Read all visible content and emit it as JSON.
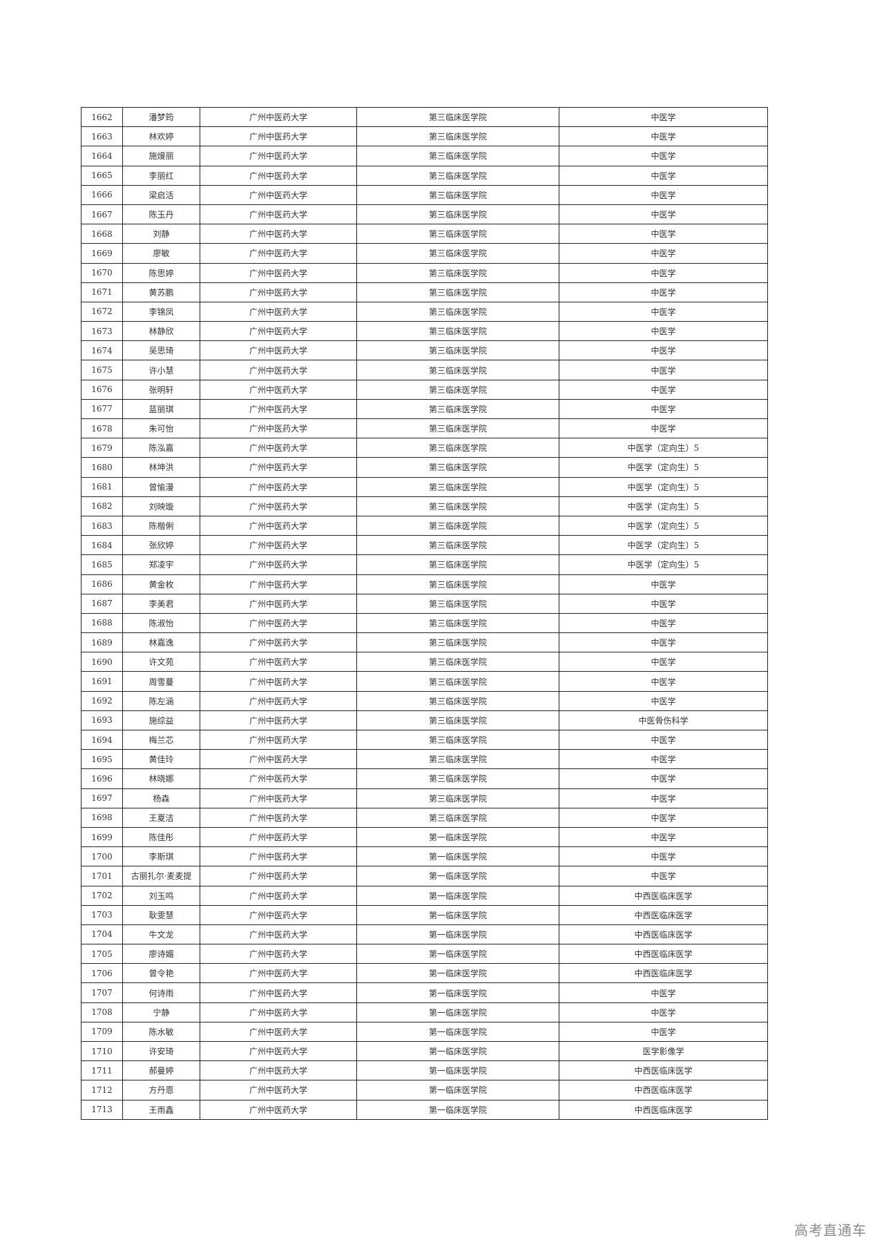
{
  "table": {
    "rows": [
      [
        "1662",
        "潘梦筠",
        "广州中医药大学",
        "第三临床医学院",
        "中医学"
      ],
      [
        "1663",
        "林欢婷",
        "广州中医药大学",
        "第三临床医学院",
        "中医学"
      ],
      [
        "1664",
        "施熳丽",
        "广州中医药大学",
        "第三临床医学院",
        "中医学"
      ],
      [
        "1665",
        "李丽红",
        "广州中医药大学",
        "第三临床医学院",
        "中医学"
      ],
      [
        "1666",
        "梁启活",
        "广州中医药大学",
        "第三临床医学院",
        "中医学"
      ],
      [
        "1667",
        "陈玉丹",
        "广州中医药大学",
        "第三临床医学院",
        "中医学"
      ],
      [
        "1668",
        "刘静",
        "广州中医药大学",
        "第三临床医学院",
        "中医学"
      ],
      [
        "1669",
        "廖敏",
        "广州中医药大学",
        "第三临床医学院",
        "中医学"
      ],
      [
        "1670",
        "陈思婷",
        "广州中医药大学",
        "第三临床医学院",
        "中医学"
      ],
      [
        "1671",
        "黄苏鹏",
        "广州中医药大学",
        "第三临床医学院",
        "中医学"
      ],
      [
        "1672",
        "李锦凤",
        "广州中医药大学",
        "第三临床医学院",
        "中医学"
      ],
      [
        "1673",
        "林静欣",
        "广州中医药大学",
        "第三临床医学院",
        "中医学"
      ],
      [
        "1674",
        "吴思琦",
        "广州中医药大学",
        "第三临床医学院",
        "中医学"
      ],
      [
        "1675",
        "许小慧",
        "广州中医药大学",
        "第三临床医学院",
        "中医学"
      ],
      [
        "1676",
        "张明轩",
        "广州中医药大学",
        "第三临床医学院",
        "中医学"
      ],
      [
        "1677",
        "蓝丽琪",
        "广州中医药大学",
        "第三临床医学院",
        "中医学"
      ],
      [
        "1678",
        "朱可怡",
        "广州中医药大学",
        "第三临床医学院",
        "中医学"
      ],
      [
        "1679",
        "陈泓嘉",
        "广州中医药大学",
        "第三临床医学院",
        "中医学（定向生）5"
      ],
      [
        "1680",
        "林坤洪",
        "广州中医药大学",
        "第三临床医学院",
        "中医学（定向生）5"
      ],
      [
        "1681",
        "曾愉漫",
        "广州中医药大学",
        "第三临床医学院",
        "中医学（定向生）5"
      ],
      [
        "1682",
        "刘映璇",
        "广州中医药大学",
        "第三临床医学院",
        "中医学（定向生）5"
      ],
      [
        "1683",
        "陈楷俐",
        "广州中医药大学",
        "第三临床医学院",
        "中医学（定向生）5"
      ],
      [
        "1684",
        "张欣婷",
        "广州中医药大学",
        "第三临床医学院",
        "中医学（定向生）5"
      ],
      [
        "1685",
        "郑凌宇",
        "广州中医药大学",
        "第三临床医学院",
        "中医学（定向生）5"
      ],
      [
        "1686",
        "黄金枚",
        "广州中医药大学",
        "第三临床医学院",
        "中医学"
      ],
      [
        "1687",
        "李美君",
        "广州中医药大学",
        "第三临床医学院",
        "中医学"
      ],
      [
        "1688",
        "陈淑怡",
        "广州中医药大学",
        "第三临床医学院",
        "中医学"
      ],
      [
        "1689",
        "林嘉逸",
        "广州中医药大学",
        "第三临床医学院",
        "中医学"
      ],
      [
        "1690",
        "许文苑",
        "广州中医药大学",
        "第三临床医学院",
        "中医学"
      ],
      [
        "1691",
        "周雪蔓",
        "广州中医药大学",
        "第三临床医学院",
        "中医学"
      ],
      [
        "1692",
        "陈左涵",
        "广州中医药大学",
        "第三临床医学院",
        "中医学"
      ],
      [
        "1693",
        "施综益",
        "广州中医药大学",
        "第三临床医学院",
        "中医骨伤科学"
      ],
      [
        "1694",
        "梅兰芯",
        "广州中医药大学",
        "第三临床医学院",
        "中医学"
      ],
      [
        "1695",
        "黄佳玲",
        "广州中医药大学",
        "第三临床医学院",
        "中医学"
      ],
      [
        "1696",
        "林晓娜",
        "广州中医药大学",
        "第三临床医学院",
        "中医学"
      ],
      [
        "1697",
        "杨森",
        "广州中医药大学",
        "第三临床医学院",
        "中医学"
      ],
      [
        "1698",
        "王夏洁",
        "广州中医药大学",
        "第三临床医学院",
        "中医学"
      ],
      [
        "1699",
        "陈佳彤",
        "广州中医药大学",
        "第一临床医学院",
        "中医学"
      ],
      [
        "1700",
        "李斯琪",
        "广州中医药大学",
        "第一临床医学院",
        "中医学"
      ],
      [
        "1701",
        "古丽扎尔·麦麦提",
        "广州中医药大学",
        "第一临床医学院",
        "中医学"
      ],
      [
        "1702",
        "刘玉鸣",
        "广州中医药大学",
        "第一临床医学院",
        "中西医临床医学"
      ],
      [
        "1703",
        "耿雯慧",
        "广州中医药大学",
        "第一临床医学院",
        "中西医临床医学"
      ],
      [
        "1704",
        "牛文龙",
        "广州中医药大学",
        "第一临床医学院",
        "中西医临床医学"
      ],
      [
        "1705",
        "廖诗媚",
        "广州中医药大学",
        "第一临床医学院",
        "中西医临床医学"
      ],
      [
        "1706",
        "曾令艳",
        "广州中医药大学",
        "第一临床医学院",
        "中西医临床医学"
      ],
      [
        "1707",
        "何诗雨",
        "广州中医药大学",
        "第一临床医学院",
        "中医学"
      ],
      [
        "1708",
        "宁静",
        "广州中医药大学",
        "第一临床医学院",
        "中医学"
      ],
      [
        "1709",
        "陈水敏",
        "广州中医药大学",
        "第一临床医学院",
        "中医学"
      ],
      [
        "1710",
        "许安琦",
        "广州中医药大学",
        "第一临床医学院",
        "医学影像学"
      ],
      [
        "1711",
        "郝曼婷",
        "广州中医药大学",
        "第一临床医学院",
        "中西医临床医学"
      ],
      [
        "1712",
        "方丹恩",
        "广州中医药大学",
        "第一临床医学院",
        "中西医临床医学"
      ],
      [
        "1713",
        "王雨鑫",
        "广州中医药大学",
        "第一临床医学院",
        "中西医临床医学"
      ]
    ]
  },
  "watermark": "高考直通车"
}
